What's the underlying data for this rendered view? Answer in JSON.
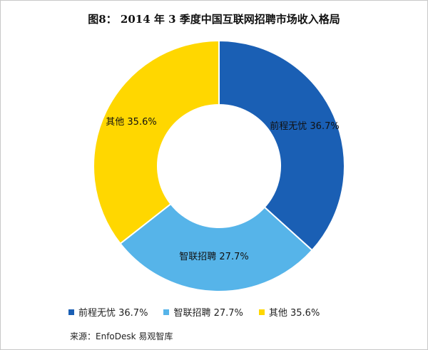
{
  "chart_data": {
    "type": "pie",
    "title": "图8： 2014 年 3 季度中国互联网招聘市场收入格局",
    "slices": [
      {
        "name": "前程无忧",
        "value": 36.7,
        "label": "前程无忧 36.7%",
        "color": "#1a5fb4"
      },
      {
        "name": "智联招聘",
        "value": 27.7,
        "label": "智联招聘 27.7%",
        "color": "#56b4e9"
      },
      {
        "name": "其他",
        "value": 35.6,
        "label": "其他 35.6%",
        "color": "#ffd700"
      }
    ],
    "legend": [
      {
        "label": "前程无忧 36.7%",
        "color": "#1a5fb4"
      },
      {
        "label": "智联招聘 27.7%",
        "color": "#56b4e9"
      },
      {
        "label": "其他 35.6%",
        "color": "#ffd700"
      }
    ],
    "legend_position": "bottom"
  },
  "source": "来源：EnfoDesk 易观智库"
}
